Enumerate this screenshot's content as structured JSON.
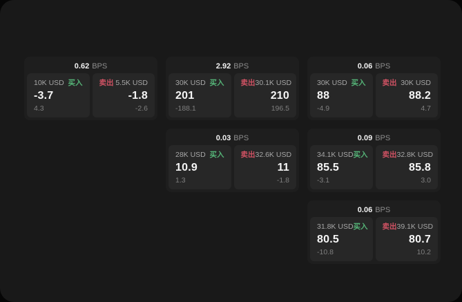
{
  "labels": {
    "buy": "买入",
    "sell": "卖出",
    "bps": "BPS"
  },
  "colors": {
    "page_bg": "#060606",
    "window_bg": "#191919",
    "card_bg": "#1e1e1e",
    "panel_bg": "#272727",
    "buy_green": "#55b377",
    "sell_red": "#cf5263",
    "text_primary": "#f5f5f5",
    "text_secondary": "#a6a6a6",
    "text_muted": "#7f7f7f"
  },
  "cards": [
    {
      "bps": "0.62",
      "buy": {
        "size": "10K USD",
        "value": "-3.7",
        "delta": "4.3"
      },
      "sell": {
        "size": "5.5K USD",
        "value": "-1.8",
        "delta": "-2.6"
      }
    },
    {
      "bps": "2.92",
      "buy": {
        "size": "30K USD",
        "value": "201",
        "delta": "-188.1"
      },
      "sell": {
        "size": "30.1K USD",
        "value": "210",
        "delta": "196.5"
      }
    },
    {
      "bps": "0.06",
      "buy": {
        "size": "30K USD",
        "value": "88",
        "delta": "-4.9"
      },
      "sell": {
        "size": "30K USD",
        "value": "88.2",
        "delta": "4.7"
      }
    },
    {
      "bps": "0.03",
      "buy": {
        "size": "28K USD",
        "value": "10.9",
        "delta": "1.3"
      },
      "sell": {
        "size": "32.6K USD",
        "value": "11",
        "delta": "-1.8"
      }
    },
    {
      "bps": "0.09",
      "buy": {
        "size": "34.1K USD",
        "value": "85.5",
        "delta": "-3.1"
      },
      "sell": {
        "size": "32.8K USD",
        "value": "85.8",
        "delta": "3.0"
      }
    },
    {
      "bps": "0.06",
      "buy": {
        "size": "31.8K USD",
        "value": "80.5",
        "delta": "-10.8"
      },
      "sell": {
        "size": "39.1K USD",
        "value": "80.7",
        "delta": "10.2"
      }
    }
  ]
}
